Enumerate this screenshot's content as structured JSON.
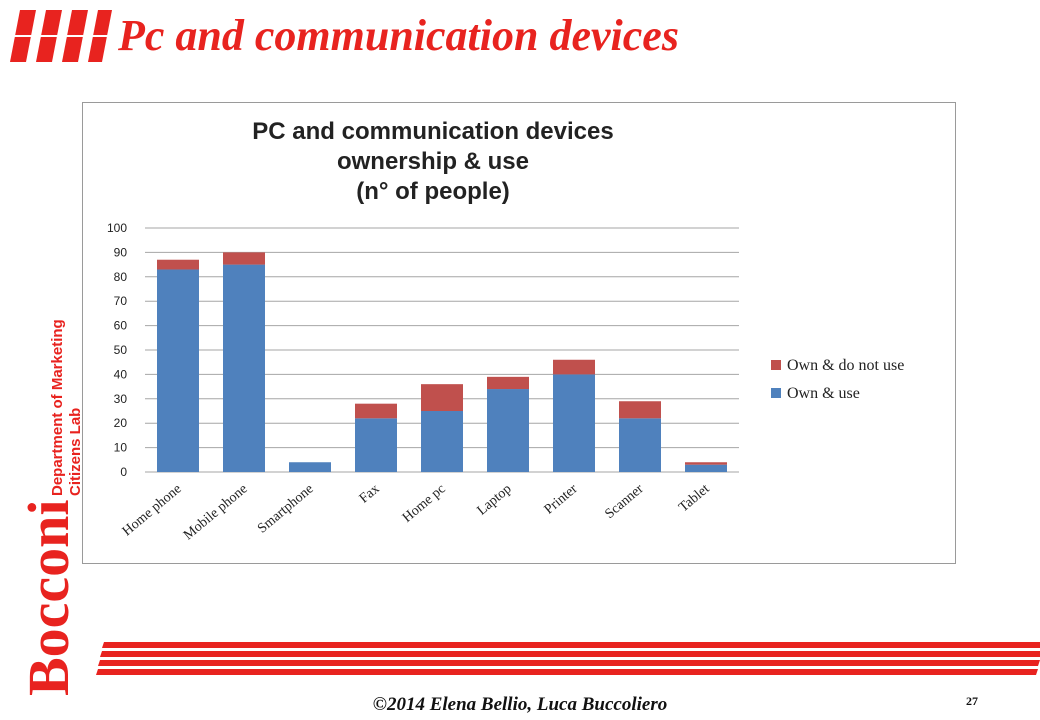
{
  "slide": {
    "title": "Pc and communication devices",
    "side_label_line1": "Department of Marketing",
    "side_label_line2": "Citizens Lab",
    "brand": "Bocconi",
    "footer": "©2014  Elena Bellio, Luca Buccoliero",
    "page_number": "27"
  },
  "colors": {
    "accent_red": "#e8231f",
    "own_use": "#4f81bd",
    "own_not_use": "#c0504d"
  },
  "chart_data": {
    "type": "bar",
    "stacked": true,
    "title_lines": [
      "PC and communication devices",
      "ownership & use",
      "(n° of people)"
    ],
    "categories": [
      "Home phone",
      "Mobile phone",
      "Smartphone",
      "Fax",
      "Home pc",
      "Laptop",
      "Printer",
      "Scanner",
      "Tablet"
    ],
    "series": [
      {
        "name": "Own & use",
        "color": "#4f81bd",
        "values": [
          83,
          85,
          4,
          22,
          25,
          34,
          40,
          22,
          3
        ]
      },
      {
        "name": "Own & do not use",
        "color": "#c0504d",
        "values": [
          4,
          5,
          0,
          6,
          11,
          5,
          6,
          7,
          1
        ]
      }
    ],
    "ylim": [
      0,
      100
    ],
    "yticks": [
      0,
      10,
      20,
      30,
      40,
      50,
      60,
      70,
      80,
      90,
      100
    ],
    "grid": true,
    "legend_position": "right"
  }
}
